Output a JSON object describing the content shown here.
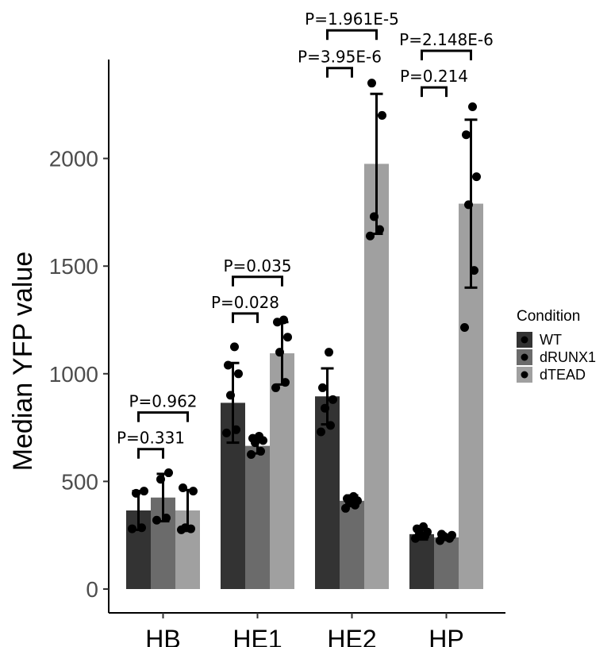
{
  "chart_data": {
    "type": "bar",
    "ylabel": "Median YFP value",
    "xlabel": "",
    "ylim": [
      0,
      2400
    ],
    "yticks": [
      0,
      500,
      1000,
      1500,
      2000
    ],
    "categories": [
      "HB",
      "HE1",
      "HE2",
      "HP"
    ],
    "legend": {
      "title": "Condition",
      "position": "right"
    },
    "series": [
      {
        "name": "WT",
        "color": "#333333",
        "values": [
          365,
          865,
          895,
          255
        ],
        "sd": [
          90,
          185,
          130,
          25
        ],
        "points": [
          [
            280,
            285,
            445,
            455
          ],
          [
            725,
            740,
            900,
            1000,
            1040,
            1125
          ],
          [
            730,
            760,
            840,
            880,
            935,
            1100
          ],
          [
            235,
            245,
            255,
            265,
            280,
            290
          ]
        ]
      },
      {
        "name": "dRUNX1",
        "color": "#6b6b6b",
        "values": [
          425,
          665,
          410,
          240
        ],
        "sd": [
          110,
          35,
          25,
          12
        ],
        "points": [
          [
            320,
            330,
            510,
            540
          ],
          [
            625,
            640,
            680,
            690,
            700,
            710
          ],
          [
            375,
            390,
            400,
            410,
            420,
            430
          ],
          [
            225,
            235,
            245,
            250,
            255
          ]
        ]
      },
      {
        "name": "dTEAD",
        "color": "#a0a0a0",
        "values": [
          365,
          1095,
          1975,
          1790
        ],
        "sd": [
          95,
          145,
          325,
          390
        ],
        "points": [
          [
            275,
            280,
            285,
            455,
            470
          ],
          [
            935,
            960,
            1100,
            1170,
            1240,
            1250
          ],
          [
            1640,
            1670,
            1730,
            2200,
            2350
          ],
          [
            1215,
            1480,
            1785,
            1915,
            2110,
            2240
          ]
        ]
      }
    ],
    "comparisons": [
      {
        "category": "HB",
        "from": "WT",
        "to": "dRUNX1",
        "label": "P=0.331",
        "y": 650
      },
      {
        "category": "HB",
        "from": "WT",
        "to": "dTEAD",
        "label": "P=0.962",
        "y": 820
      },
      {
        "category": "HE1",
        "from": "WT",
        "to": "dRUNX1",
        "label": "P=0.028",
        "y": 1280
      },
      {
        "category": "HE1",
        "from": "WT",
        "to": "dTEAD",
        "label": "P=0.035",
        "y": 1450
      },
      {
        "category": "HE2",
        "from": "WT",
        "to": "dRUNX1",
        "label": "P=3.95E-6",
        "y": 2420
      },
      {
        "category": "HE2",
        "from": "WT",
        "to": "dTEAD",
        "label": "P=1.961E-5",
        "y": 2595
      },
      {
        "category": "HP",
        "from": "WT",
        "to": "dRUNX1",
        "label": "P=0.214",
        "y": 2330
      },
      {
        "category": "HP",
        "from": "WT",
        "to": "dTEAD",
        "label": "P=2.148E-6",
        "y": 2500
      }
    ]
  }
}
